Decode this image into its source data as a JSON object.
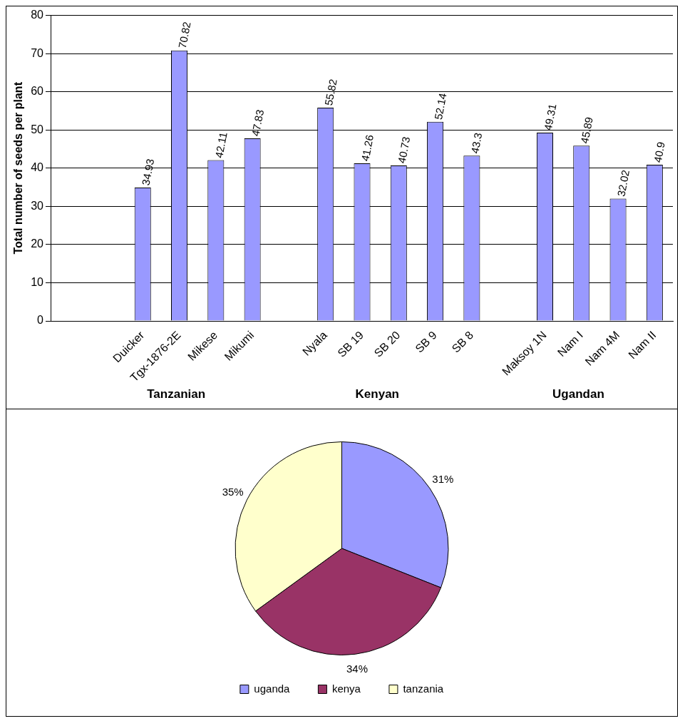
{
  "chart_data": [
    {
      "type": "bar",
      "ylabel": "Total number of seeds per plant",
      "categories": [
        null,
        null,
        "Duicker",
        "Tgx-1876-2E",
        "Mikese",
        "Mikumi",
        null,
        "Nyala",
        "SB 19",
        "SB 20",
        "SB 9",
        "SB 8",
        null,
        "Maksoy 1N",
        "Nam I",
        "Nam 4M",
        "Nam II"
      ],
      "values": [
        null,
        null,
        34.93,
        70.82,
        42.11,
        47.83,
        null,
        55.82,
        41.26,
        40.73,
        52.14,
        43.3,
        null,
        49.31,
        45.89,
        32.02,
        40.9
      ],
      "color": "#9999ff",
      "ylim": [
        0,
        80
      ],
      "yticks": [
        0,
        10,
        20,
        30,
        40,
        50,
        60,
        70,
        80
      ],
      "grid": "y",
      "data_labels": true,
      "annotations": [
        "Tanzanian",
        "Kenyan",
        "Ugandan"
      ]
    },
    {
      "type": "pie",
      "categories": [
        "uganda",
        "kenya",
        "tanzania"
      ],
      "values": [
        31,
        34,
        35
      ],
      "colors": [
        "#9999ff",
        "#993366",
        "#ffffcc"
      ],
      "value_labels": [
        "31%",
        "34%",
        "35%"
      ],
      "legend": "bottom"
    }
  ]
}
